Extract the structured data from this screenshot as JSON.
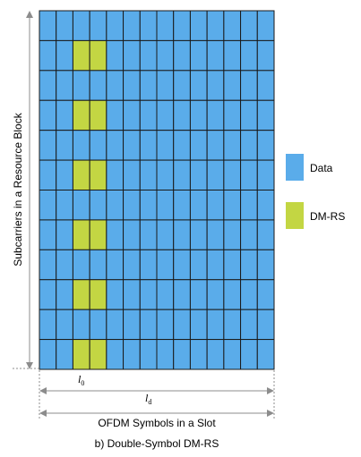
{
  "colors": {
    "data": "#5aacea",
    "dmrs": "#c3d643",
    "grid_line": "#1a1a1a",
    "guide_line": "#8c8c8c",
    "text": "#000000"
  },
  "grid": {
    "rows": 12,
    "cols": 14,
    "dmrs_columns": [
      2,
      3
    ],
    "dmrs_rows_from_top": [
      1,
      3,
      5,
      7,
      9,
      11
    ]
  },
  "labels": {
    "y_axis": "Subcarriers in a Resource Block",
    "l0_base": "l",
    "l0_sub": "0",
    "ld_base": "l",
    "ld_sub": "d",
    "x_axis": "OFDM Symbols in a Slot",
    "caption": "b) Double-Symbol DM-RS"
  },
  "legend": [
    {
      "label": "Data",
      "color_key": "data"
    },
    {
      "label": "DM-RS",
      "color_key": "dmrs"
    }
  ]
}
